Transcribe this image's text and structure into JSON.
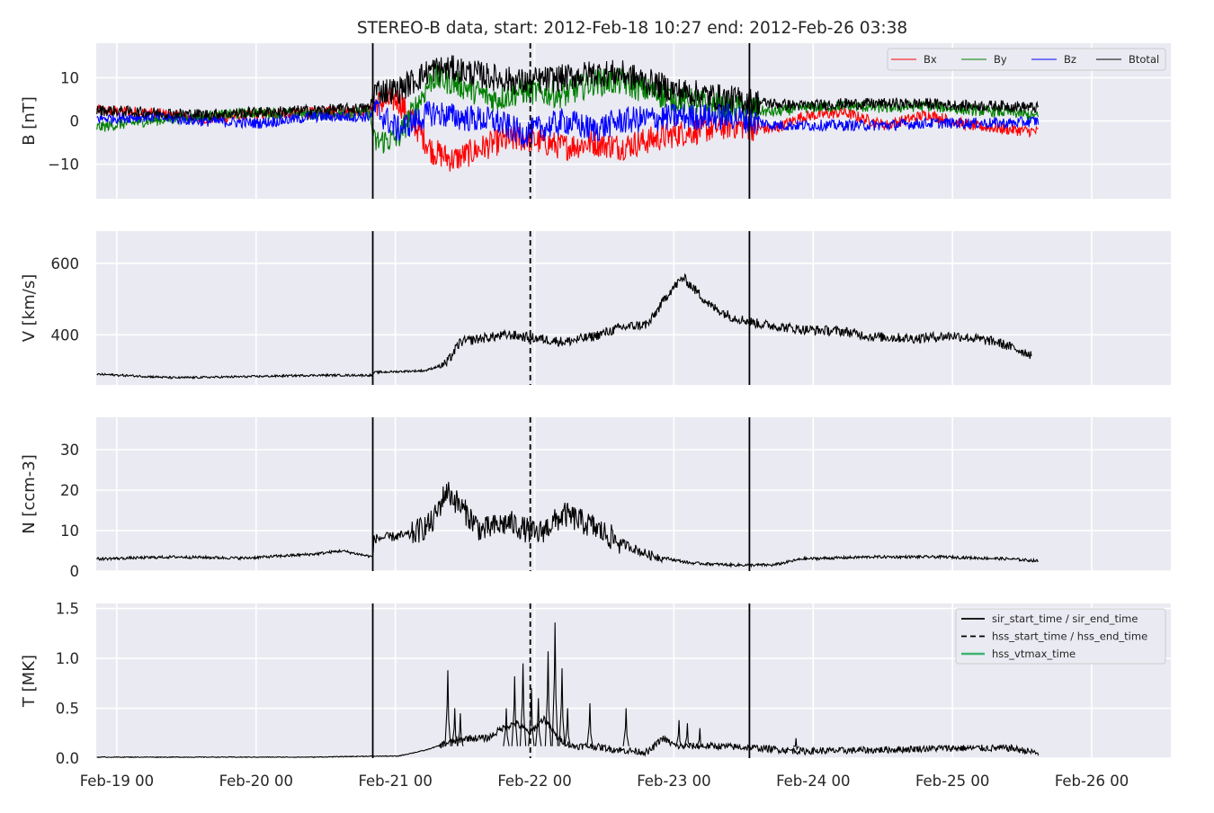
{
  "figure": {
    "title": "STEREO-B data, start: 2012-Feb-18 10:27  end: 2012-Feb-26 03:38"
  },
  "chart_data": [
    {
      "panel": "magnetic-field",
      "type": "line",
      "ylabel": "B [nT]",
      "ylim": [
        -18,
        18
      ],
      "yticks": [
        -10,
        0,
        10
      ],
      "ytick_labels": [
        "−10",
        "0",
        "10"
      ],
      "grid": true,
      "legend": {
        "placement": "top-right",
        "columns": 4
      },
      "x_unit": "days since 2012-Feb-18 00:00",
      "series": [
        {
          "name": "Bx",
          "color": "#ff0000",
          "x": [
            0.44,
            0.8,
            1.2,
            1.6,
            2.0,
            2.4,
            2.43,
            2.6,
            2.85,
            3.0,
            3.3,
            3.5,
            3.8,
            4.0,
            4.2,
            4.6,
            5.0,
            5.3,
            5.5,
            5.8,
            6.1,
            6.4,
            6.7,
            7.0,
            7.2
          ],
          "y": [
            2.5,
            2,
            0.5,
            1.5,
            2,
            2.5,
            4,
            5,
            -7,
            -9,
            -5,
            -4,
            -6,
            -5,
            -6,
            -3,
            -1,
            -2,
            1,
            2,
            -1,
            1.5,
            -1,
            -2,
            -2.5
          ]
        },
        {
          "name": "By",
          "color": "#008000",
          "x": [
            0.44,
            0.8,
            1.2,
            1.6,
            2.0,
            2.4,
            2.43,
            2.6,
            2.85,
            3.0,
            3.3,
            3.5,
            3.8,
            4.0,
            4.2,
            4.6,
            5.0,
            5.3,
            5.5,
            5.8,
            6.1,
            6.4,
            6.7,
            7.0,
            7.2
          ],
          "y": [
            -1.5,
            0,
            1,
            2,
            1.5,
            2,
            -5,
            -4,
            10,
            9,
            5,
            7,
            6,
            9,
            9,
            5,
            3,
            2,
            3,
            3.5,
            3,
            3.5,
            2.5,
            2,
            1
          ]
        },
        {
          "name": "Bz",
          "color": "#0000ff",
          "x": [
            0.44,
            0.8,
            1.2,
            1.6,
            2.0,
            2.4,
            2.43,
            2.6,
            2.85,
            3.0,
            3.3,
            3.5,
            3.8,
            4.0,
            4.2,
            4.6,
            5.0,
            5.3,
            5.5,
            5.8,
            6.1,
            6.4,
            6.7,
            7.0,
            7.2
          ],
          "y": [
            0.5,
            1,
            0,
            -0.5,
            1,
            1,
            3,
            -2,
            2,
            1,
            0,
            -3,
            0,
            -2,
            0,
            1,
            1,
            -1,
            -1,
            -1,
            -1,
            -0.5,
            -0.5,
            -0.5,
            0
          ]
        },
        {
          "name": "Btotal",
          "color": "#000000",
          "x": [
            0.44,
            0.8,
            1.2,
            1.6,
            2.0,
            2.4,
            2.43,
            2.6,
            2.85,
            3.0,
            3.3,
            3.5,
            3.8,
            4.0,
            4.2,
            4.6,
            5.0,
            5.3,
            5.5,
            5.8,
            6.1,
            6.4,
            6.7,
            7.0,
            7.2
          ],
          "y": [
            2.5,
            2,
            1.5,
            2,
            2.5,
            3,
            7,
            7,
            12,
            12,
            10,
            9,
            10,
            11,
            11,
            7,
            5,
            4,
            3.5,
            4,
            4,
            4,
            3.5,
            3.5,
            3
          ]
        }
      ]
    },
    {
      "panel": "speed",
      "type": "line",
      "ylabel": "V [km/s]",
      "ylim": [
        260,
        690
      ],
      "yticks": [
        400,
        600
      ],
      "ytick_labels": [
        "400",
        "600"
      ],
      "grid": true,
      "series": [
        {
          "name": "V",
          "color": "#000000",
          "x": [
            0.44,
            1.0,
            1.5,
            2.0,
            2.42,
            2.43,
            2.8,
            2.95,
            3.05,
            3.2,
            3.4,
            3.6,
            3.8,
            4.0,
            4.2,
            4.4,
            4.55,
            4.65,
            4.75,
            4.85,
            5.0,
            5.2,
            5.5,
            5.8,
            6.0,
            6.3,
            6.6,
            6.9,
            7.15
          ],
          "y": [
            290,
            280,
            283,
            287,
            287,
            295,
            300,
            320,
            380,
            390,
            400,
            390,
            380,
            395,
            420,
            430,
            520,
            560,
            520,
            480,
            450,
            430,
            415,
            410,
            395,
            390,
            398,
            380,
            345
          ]
        }
      ]
    },
    {
      "panel": "density",
      "type": "line",
      "ylabel": "N [ccm-3]",
      "ylim": [
        0,
        38
      ],
      "yticks": [
        0,
        10,
        20,
        30
      ],
      "ytick_labels": [
        "0",
        "10",
        "20",
        "30"
      ],
      "grid": true,
      "series": [
        {
          "name": "N",
          "color": "#000000",
          "x": [
            0.44,
            1.0,
            1.5,
            2.0,
            2.2,
            2.42,
            2.43,
            2.7,
            2.85,
            2.95,
            3.2,
            3.4,
            3.6,
            3.8,
            4.0,
            4.2,
            4.4,
            4.7,
            5.0,
            5.3,
            5.5,
            6.0,
            6.5,
            7.0,
            7.2
          ],
          "y": [
            3,
            3.5,
            3.2,
            4.2,
            5,
            3.5,
            8,
            9,
            12,
            20,
            10,
            12,
            9,
            14,
            11,
            7,
            4,
            2,
            1.5,
            1.5,
            3,
            3.5,
            3.5,
            3,
            2.5
          ]
        }
      ]
    },
    {
      "panel": "temperature",
      "type": "line",
      "ylabel": "T [MK]",
      "ylim": [
        0,
        1.55
      ],
      "yticks": [
        0,
        0.5,
        1.0,
        1.5
      ],
      "ytick_labels": [
        "0.0",
        "0.5",
        "1.0",
        "1.5"
      ],
      "grid": true,
      "x_ticks": [
        0.5833,
        1.5833,
        2.5833,
        3.5833,
        4.5833,
        5.5833,
        6.5833,
        7.5833
      ],
      "x_tick_labels": [
        "Feb-19 00",
        "Feb-20 00",
        "Feb-21 00",
        "Feb-22 00",
        "Feb-23 00",
        "Feb-24 00",
        "Feb-25 00",
        "Feb-26 00"
      ],
      "legend": {
        "placement": "top-right",
        "entries": [
          {
            "label": "sir_start_time / sir_end_time",
            "style": "solid",
            "color": "#000000"
          },
          {
            "label": "hss_start_time / hss_end_time",
            "style": "dashed",
            "color": "#000000"
          },
          {
            "label": "hss_vtmax_time",
            "style": "solid",
            "color": "#3cb371"
          }
        ]
      },
      "series": [
        {
          "name": "T",
          "color": "#000000",
          "x": [
            0.44,
            1.0,
            2.0,
            2.42,
            2.6,
            2.8,
            2.95,
            3.1,
            3.25,
            3.35,
            3.45,
            3.55,
            3.65,
            3.75,
            3.85,
            4.0,
            4.2,
            4.4,
            4.5,
            4.6,
            4.9,
            5.2,
            5.5,
            6.0,
            6.5,
            7.0,
            7.2
          ],
          "y": [
            0.01,
            0.01,
            0.01,
            0.02,
            0.02,
            0.08,
            0.15,
            0.2,
            0.2,
            0.3,
            0.35,
            0.25,
            0.4,
            0.2,
            0.12,
            0.12,
            0.08,
            0.06,
            0.2,
            0.12,
            0.12,
            0.1,
            0.07,
            0.08,
            0.1,
            0.1,
            0.05
          ]
        }
      ],
      "spikes": {
        "x": [
          2.96,
          3.01,
          3.05,
          3.38,
          3.44,
          3.5,
          3.56,
          3.61,
          3.68,
          3.73,
          3.78,
          3.82,
          3.98,
          4.24,
          4.62,
          4.68,
          4.77,
          5.46
        ],
        "y": [
          0.88,
          0.5,
          0.45,
          0.5,
          0.82,
          0.95,
          0.7,
          0.6,
          1.07,
          1.36,
          0.9,
          0.5,
          0.55,
          0.5,
          0.38,
          0.35,
          0.3,
          0.2
        ]
      }
    }
  ],
  "markers": [
    {
      "name": "sir_start_time",
      "x": 2.4211,
      "style": "solid",
      "color": "#000000"
    },
    {
      "name": "hss_start_time",
      "x": 3.5521,
      "style": "dashed",
      "color": "#000000"
    },
    {
      "name": "sir_end_time",
      "x": 5.1257,
      "style": "solid",
      "color": "#000000"
    }
  ],
  "x_range": [
    0.4354,
    8.1514
  ]
}
